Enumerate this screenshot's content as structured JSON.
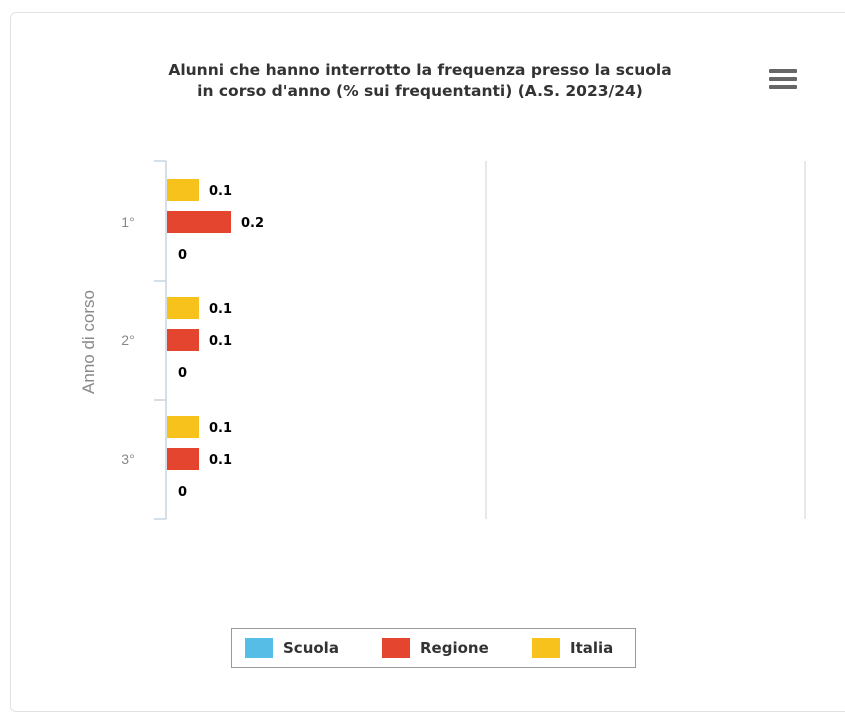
{
  "chart_data": {
    "type": "bar",
    "orientation": "horizontal",
    "title": "Alunni che hanno interrotto la frequenza presso la scuola in corso d'anno (% sui frequentanti) (A.S. 2023/24)",
    "title_lines": [
      "Alunni che hanno interrotto la frequenza presso la scuola",
      "in corso d'anno (% sui frequentanti) (A.S. 2023/24)"
    ],
    "ylabel": "Anno di corso",
    "xlabel": "",
    "categories": [
      "1°",
      "2°",
      "3°"
    ],
    "series": [
      {
        "name": "Italia",
        "color": "#f7c21b",
        "values": [
          0.1,
          0.1,
          0.1
        ],
        "labels": [
          "0.1",
          "0.1",
          "0.1"
        ]
      },
      {
        "name": "Regione",
        "color": "#e3452f",
        "values": [
          0.2,
          0.1,
          0.1
        ],
        "labels": [
          "0.2",
          "0.1",
          "0.1"
        ]
      },
      {
        "name": "Scuola",
        "color": "#55bde6",
        "values": [
          0,
          0,
          0
        ],
        "labels": [
          "0",
          "0",
          "0"
        ]
      }
    ],
    "legend": [
      {
        "name": "Scuola",
        "color": "#55bde6"
      },
      {
        "name": "Regione",
        "color": "#e3452f"
      },
      {
        "name": "Italia",
        "color": "#f7c21b"
      }
    ],
    "legend_position": "bottom-center",
    "grid": true
  },
  "menu": {
    "icon": "hamburger-menu-icon"
  }
}
